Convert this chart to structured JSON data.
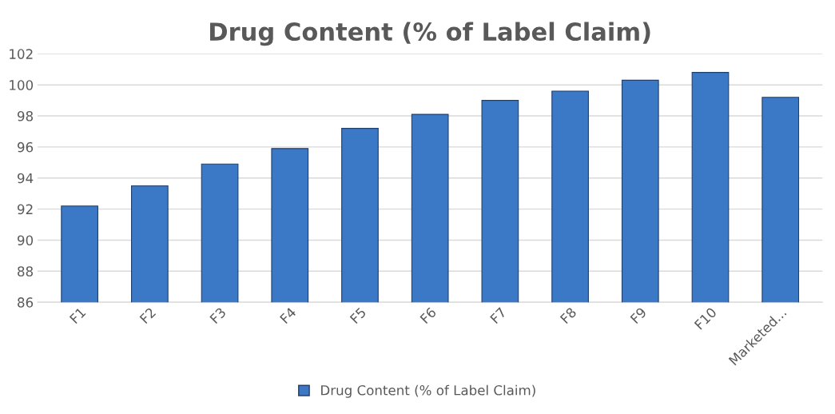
{
  "chart_data": {
    "type": "bar",
    "title": "Drug Content (% of Label Claim)",
    "categories": [
      "F1",
      "F2",
      "F3",
      "F4",
      "F5",
      "F6",
      "F7",
      "F8",
      "F9",
      "F10",
      "Marketed..."
    ],
    "series": [
      {
        "name": "Drug Content (% of Label Claim)",
        "color": "#3b78c6",
        "values": [
          92.2,
          93.5,
          94.9,
          95.9,
          97.2,
          98.1,
          99.0,
          99.6,
          100.3,
          100.8,
          99.2
        ]
      }
    ],
    "ylim": [
      86,
      102
    ],
    "yticks": [
      86,
      88,
      90,
      92,
      94,
      96,
      98,
      100,
      102
    ],
    "grid": "y",
    "legend": "bottom"
  }
}
